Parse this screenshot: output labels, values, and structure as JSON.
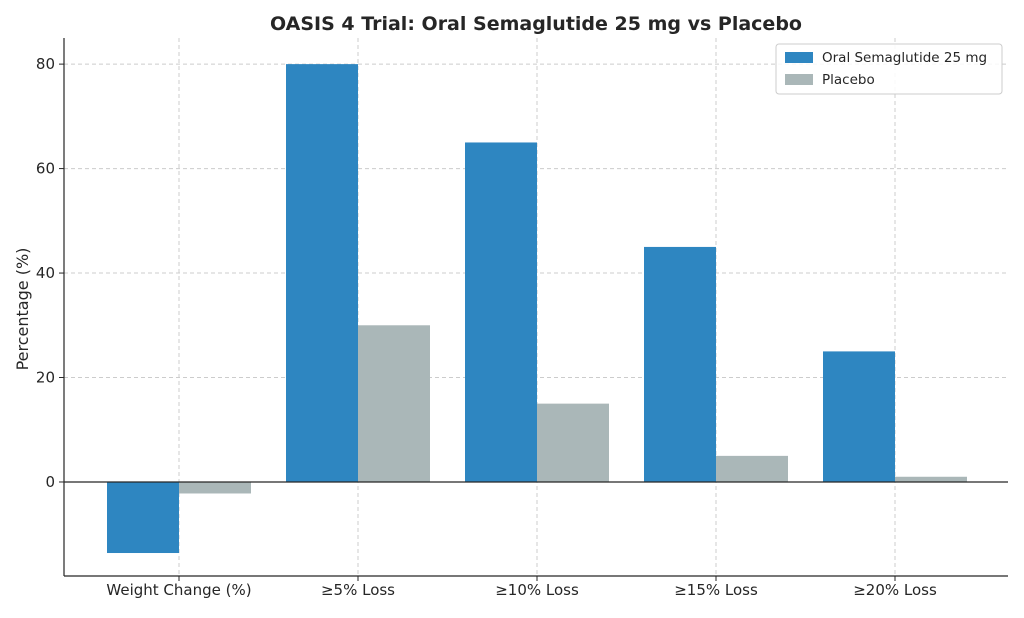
{
  "chart_data": {
    "type": "bar",
    "title": "OASIS 4 Trial: Oral Semaglutide 25 mg vs Placebo",
    "xlabel": "",
    "ylabel": "Percentage (%)",
    "categories": [
      "Weight Change (%)",
      "≥5% Loss",
      "≥10% Loss",
      "≥15% Loss",
      "≥20% Loss"
    ],
    "series": [
      {
        "name": "Oral Semaglutide 25 mg",
        "color": "#2e86c1",
        "values": [
          -13.6,
          80,
          65,
          45,
          25
        ]
      },
      {
        "name": "Placebo",
        "color": "#aab7b8",
        "values": [
          -2.2,
          30,
          15,
          5,
          1
        ]
      }
    ],
    "ylim": [
      -18,
      85
    ],
    "yticks": [
      0,
      20,
      40,
      60,
      80
    ],
    "grid": true,
    "legend_position": "top-right"
  }
}
